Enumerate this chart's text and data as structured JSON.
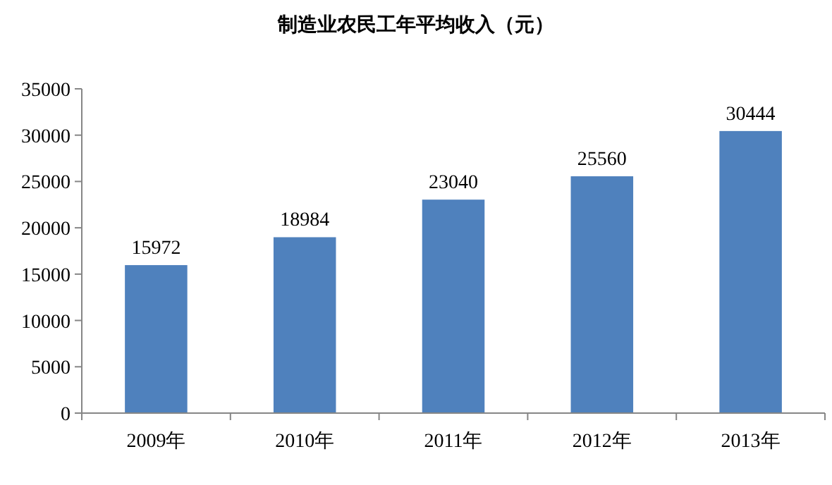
{
  "chart_data": {
    "type": "bar",
    "title": "制造业农民工年平均收入（元）",
    "categories": [
      "2009年",
      "2010年",
      "2011年",
      "2012年",
      "2013年"
    ],
    "values": [
      15972,
      18984,
      23040,
      25560,
      30444
    ],
    "color": "#4f81bd",
    "ylim": [
      0,
      35000
    ],
    "yticks": [
      0,
      5000,
      10000,
      15000,
      20000,
      25000,
      30000,
      35000
    ],
    "data_labels": true,
    "grid": false
  }
}
